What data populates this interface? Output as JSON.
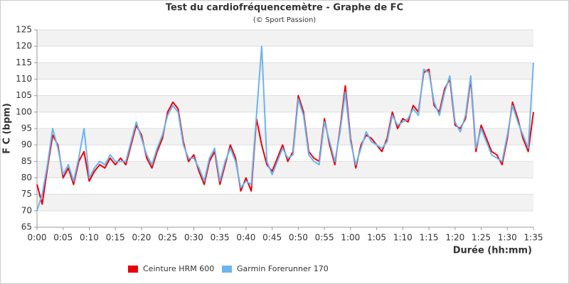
{
  "chart_data": {
    "type": "line",
    "title": "Test du cardiofréquencemètre - Graphe de FC",
    "subtitle": "(© Sport Passion)",
    "xlabel": "Durée (hh:mm)",
    "ylabel": "F C (bpm)",
    "x": [
      0,
      1,
      2,
      3,
      4,
      5,
      6,
      7,
      8,
      9,
      10,
      11,
      12,
      13,
      14,
      15,
      16,
      17,
      18,
      19,
      20,
      21,
      22,
      23,
      24,
      25,
      26,
      27,
      28,
      29,
      30,
      31,
      32,
      33,
      34,
      35,
      36,
      37,
      38,
      39,
      40,
      41,
      42,
      43,
      44,
      45,
      46,
      47,
      48,
      49,
      50,
      51,
      52,
      53,
      54,
      55,
      56,
      57,
      58,
      59,
      60,
      61,
      62,
      63,
      64,
      65,
      66,
      67,
      68,
      69,
      70,
      71,
      72,
      73,
      74,
      75,
      76,
      77,
      78,
      79,
      80,
      81,
      82,
      83,
      84,
      85,
      86,
      87,
      88,
      89,
      90,
      91,
      92,
      93,
      94,
      95
    ],
    "series": [
      {
        "name": "Ceinture HRM 600",
        "color": "#e8000b",
        "values": [
          78,
          72,
          83,
          93,
          90,
          80,
          83,
          78,
          85,
          88,
          79,
          82,
          84,
          83,
          86,
          84,
          86,
          84,
          90,
          96,
          93,
          86,
          83,
          88,
          92,
          100,
          103,
          101,
          91,
          85,
          87,
          82,
          78,
          85,
          88,
          78,
          84,
          90,
          86,
          76,
          80,
          76,
          98,
          90,
          84,
          82,
          86,
          90,
          85,
          88,
          105,
          100,
          88,
          86,
          85,
          98,
          90,
          84,
          95,
          108,
          92,
          83,
          90,
          93,
          92,
          90,
          88,
          92,
          100,
          95,
          98,
          97,
          102,
          100,
          112,
          113,
          102,
          100,
          107,
          110,
          96,
          95,
          98,
          110,
          88,
          96,
          92,
          88,
          87,
          84,
          92,
          103,
          98,
          92,
          88,
          100
        ]
      },
      {
        "name": "Garmin Forerunner 170",
        "color": "#6cb4ee",
        "values": [
          70,
          75,
          84,
          95,
          89,
          81,
          84,
          79,
          86,
          95,
          80,
          83,
          85,
          84,
          87,
          85,
          85,
          85,
          91,
          97,
          92,
          87,
          84,
          89,
          93,
          99,
          102,
          100,
          90,
          86,
          86,
          83,
          79,
          86,
          89,
          79,
          85,
          89,
          85,
          77,
          79,
          78,
          99,
          120,
          85,
          81,
          85,
          89,
          86,
          87,
          104,
          99,
          87,
          85,
          84,
          97,
          91,
          85,
          94,
          106,
          91,
          84,
          89,
          94,
          91,
          90,
          89,
          91,
          99,
          96,
          97,
          98,
          101,
          99,
          113,
          112,
          103,
          99,
          106,
          111,
          97,
          94,
          99,
          111,
          89,
          95,
          91,
          87,
          86,
          85,
          93,
          102,
          97,
          93,
          89,
          115
        ]
      }
    ],
    "xlim": [
      0,
      95
    ],
    "xticks": [
      {
        "value": 0,
        "label": "0:00"
      },
      {
        "value": 5,
        "label": "0:05"
      },
      {
        "value": 10,
        "label": "0:10"
      },
      {
        "value": 15,
        "label": "0:15"
      },
      {
        "value": 20,
        "label": "0:20"
      },
      {
        "value": 25,
        "label": "0:25"
      },
      {
        "value": 30,
        "label": "0:30"
      },
      {
        "value": 35,
        "label": "0:35"
      },
      {
        "value": 40,
        "label": "0:40"
      },
      {
        "value": 45,
        "label": "0:45"
      },
      {
        "value": 50,
        "label": "0:50"
      },
      {
        "value": 55,
        "label": "0:55"
      },
      {
        "value": 60,
        "label": "1:00"
      },
      {
        "value": 65,
        "label": "1:05"
      },
      {
        "value": 70,
        "label": "1:10"
      },
      {
        "value": 75,
        "label": "1:15"
      },
      {
        "value": 80,
        "label": "1:20"
      },
      {
        "value": 85,
        "label": "1:25"
      },
      {
        "value": 90,
        "label": "1:30"
      },
      {
        "value": 95,
        "label": "1:35"
      }
    ],
    "ylim": [
      65,
      125
    ],
    "yticks": [
      65,
      70,
      75,
      80,
      85,
      90,
      95,
      100,
      105,
      110,
      115,
      120,
      125
    ],
    "grid": true,
    "legend": "bottom"
  }
}
